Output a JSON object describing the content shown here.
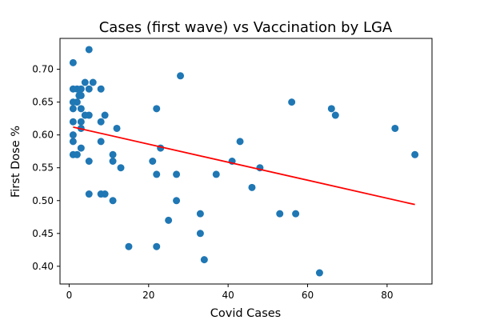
{
  "chart_data": {
    "type": "scatter",
    "title": "Cases (first wave) vs Vaccination by LGA",
    "xlabel": "Covid Cases",
    "ylabel": "First Dose %",
    "xlim": [
      -2.3,
      91.3
    ],
    "ylim": [
      0.373,
      0.747
    ],
    "xticks": [
      0,
      20,
      40,
      60,
      80
    ],
    "xtick_labels": [
      "0",
      "20",
      "40",
      "60",
      "80"
    ],
    "yticks": [
      0.4,
      0.45,
      0.5,
      0.55,
      0.6,
      0.65,
      0.7
    ],
    "ytick_labels": [
      "0.40",
      "0.45",
      "0.50",
      "0.55",
      "0.60",
      "0.65",
      "0.70"
    ],
    "grid": false,
    "point_color": "#1f77b4",
    "trendline_color": "#ff0000",
    "points": [
      [
        1,
        0.71
      ],
      [
        1,
        0.67
      ],
      [
        1,
        0.65
      ],
      [
        1,
        0.64
      ],
      [
        1,
        0.62
      ],
      [
        1,
        0.6
      ],
      [
        1,
        0.59
      ],
      [
        1,
        0.57
      ],
      [
        2,
        0.67
      ],
      [
        2,
        0.65
      ],
      [
        2,
        0.57
      ],
      [
        2.5,
        0.66
      ],
      [
        3,
        0.67
      ],
      [
        3,
        0.66
      ],
      [
        3,
        0.64
      ],
      [
        3,
        0.62
      ],
      [
        3,
        0.61
      ],
      [
        3,
        0.58
      ],
      [
        4,
        0.68
      ],
      [
        4,
        0.63
      ],
      [
        5,
        0.73
      ],
      [
        5,
        0.67
      ],
      [
        5,
        0.63
      ],
      [
        5,
        0.56
      ],
      [
        5,
        0.51
      ],
      [
        6,
        0.68
      ],
      [
        8,
        0.67
      ],
      [
        8,
        0.62
      ],
      [
        8,
        0.59
      ],
      [
        8,
        0.51
      ],
      [
        9,
        0.63
      ],
      [
        9,
        0.51
      ],
      [
        11,
        0.57
      ],
      [
        11,
        0.56
      ],
      [
        11,
        0.5
      ],
      [
        12,
        0.61
      ],
      [
        13,
        0.55
      ],
      [
        15,
        0.43
      ],
      [
        21,
        0.56
      ],
      [
        22,
        0.64
      ],
      [
        22,
        0.54
      ],
      [
        22,
        0.43
      ],
      [
        23,
        0.58
      ],
      [
        25,
        0.47
      ],
      [
        27,
        0.54
      ],
      [
        27,
        0.5
      ],
      [
        28,
        0.69
      ],
      [
        33,
        0.48
      ],
      [
        33,
        0.45
      ],
      [
        34,
        0.41
      ],
      [
        37,
        0.54
      ],
      [
        41,
        0.56
      ],
      [
        43,
        0.59
      ],
      [
        46,
        0.52
      ],
      [
        48,
        0.55
      ],
      [
        53,
        0.48
      ],
      [
        56,
        0.65
      ],
      [
        57,
        0.48
      ],
      [
        63,
        0.39
      ],
      [
        66,
        0.64
      ],
      [
        67,
        0.63
      ],
      [
        82,
        0.61
      ],
      [
        87,
        0.57
      ]
    ],
    "trendline": {
      "x": [
        1,
        87
      ],
      "y": [
        0.612,
        0.494
      ]
    }
  }
}
